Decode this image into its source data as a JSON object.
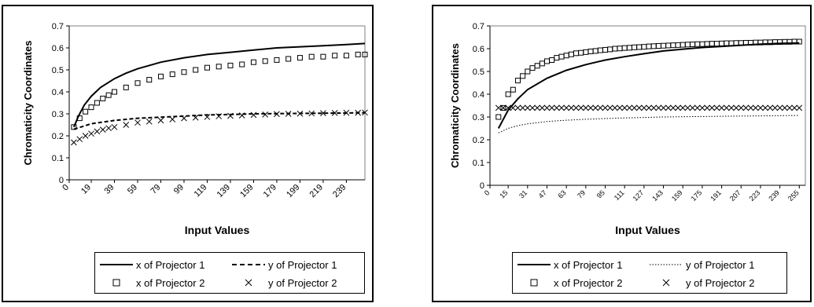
{
  "chart_data": [
    {
      "type": "line",
      "ylabel": "Chromaticity  Coordinates",
      "xlabel": "Input Values",
      "ylim": [
        0,
        0.7
      ],
      "yticks": [
        "0",
        "0.1",
        "0.2",
        "0.3",
        "0.4",
        "0.5",
        "0.6",
        "0.7"
      ],
      "xlim": [
        0,
        255
      ],
      "xtick_values": [
        0,
        19,
        39,
        59,
        79,
        99,
        119,
        139,
        159,
        179,
        199,
        219,
        239
      ],
      "xtick_labels": [
        "0",
        "19",
        "39",
        "59",
        "79",
        "99",
        "119",
        "139",
        "159",
        "179",
        "199",
        "219",
        "239"
      ],
      "grid": false,
      "legend": "bottom",
      "series": [
        {
          "name": "x of Projector 1",
          "style": "solid",
          "color": "#000000",
          "x": [
            4,
            8,
            13,
            19,
            27,
            39,
            49,
            59,
            69,
            79,
            99,
            119,
            139,
            159,
            179,
            199,
            219,
            239,
            255
          ],
          "y": [
            0.24,
            0.29,
            0.34,
            0.38,
            0.42,
            0.46,
            0.485,
            0.505,
            0.52,
            0.535,
            0.555,
            0.57,
            0.58,
            0.59,
            0.6,
            0.605,
            0.61,
            0.615,
            0.62
          ]
        },
        {
          "name": "y of Projector 1",
          "style": "dashed",
          "color": "#000000",
          "x": [
            4,
            19,
            39,
            59,
            79,
            99,
            119,
            139,
            159,
            179,
            199,
            219,
            239,
            255
          ],
          "y": [
            0.23,
            0.255,
            0.27,
            0.28,
            0.285,
            0.29,
            0.295,
            0.297,
            0.3,
            0.301,
            0.302,
            0.303,
            0.304,
            0.305
          ]
        },
        {
          "name": "x of Projector 2",
          "style": "square-marker",
          "color": "#000000",
          "x": [
            4,
            9,
            14,
            19,
            24,
            29,
            34,
            39,
            49,
            59,
            69,
            79,
            89,
            99,
            109,
            119,
            129,
            139,
            149,
            159,
            169,
            179,
            189,
            199,
            209,
            219,
            229,
            239,
            249,
            255
          ],
          "y": [
            0.24,
            0.28,
            0.31,
            0.33,
            0.35,
            0.37,
            0.385,
            0.4,
            0.42,
            0.44,
            0.455,
            0.47,
            0.48,
            0.49,
            0.5,
            0.51,
            0.515,
            0.52,
            0.525,
            0.535,
            0.54,
            0.545,
            0.55,
            0.555,
            0.56,
            0.56,
            0.565,
            0.565,
            0.57,
            0.57
          ]
        },
        {
          "name": "y of Projector 2",
          "style": "x-marker",
          "color": "#000000",
          "x": [
            4,
            9,
            14,
            19,
            24,
            29,
            34,
            39,
            49,
            59,
            69,
            79,
            89,
            99,
            109,
            119,
            129,
            139,
            149,
            159,
            169,
            179,
            189,
            199,
            209,
            219,
            229,
            239,
            249,
            255
          ],
          "y": [
            0.17,
            0.185,
            0.2,
            0.21,
            0.22,
            0.228,
            0.235,
            0.24,
            0.25,
            0.26,
            0.265,
            0.27,
            0.275,
            0.28,
            0.283,
            0.286,
            0.289,
            0.291,
            0.293,
            0.295,
            0.297,
            0.299,
            0.3,
            0.301,
            0.302,
            0.303,
            0.304,
            0.305,
            0.305,
            0.306
          ]
        }
      ]
    },
    {
      "type": "line",
      "ylabel": "Chromaticity  Coordinates",
      "xlabel": "Input Values",
      "ylim": [
        0,
        0.7
      ],
      "yticks": [
        "0",
        "0.1",
        "0.2",
        "0.3",
        "0.4",
        "0.5",
        "0.6",
        "0.7"
      ],
      "xlim": [
        0,
        260
      ],
      "xtick_values": [
        0,
        15,
        31,
        47,
        63,
        79,
        95,
        111,
        127,
        143,
        159,
        175,
        191,
        207,
        223,
        239,
        255
      ],
      "xtick_labels": [
        "0",
        "15",
        "31",
        "47",
        "63",
        "79",
        "95",
        "111",
        "127",
        "143",
        "159",
        "175",
        "191",
        "207",
        "223",
        "239",
        "255"
      ],
      "grid": false,
      "legend": "bottom",
      "series": [
        {
          "name": "x of Projector 1",
          "style": "solid",
          "color": "#000000",
          "x": [
            7,
            15,
            23,
            31,
            47,
            63,
            79,
            95,
            111,
            127,
            143,
            159,
            175,
            191,
            207,
            223,
            239,
            255
          ],
          "y": [
            0.25,
            0.33,
            0.38,
            0.42,
            0.47,
            0.505,
            0.53,
            0.55,
            0.565,
            0.578,
            0.59,
            0.598,
            0.605,
            0.61,
            0.615,
            0.62,
            0.623,
            0.625
          ]
        },
        {
          "name": "y of Projector 1",
          "style": "dotted",
          "color": "#000000",
          "x": [
            7,
            15,
            23,
            31,
            47,
            63,
            79,
            95,
            111,
            127,
            143,
            159,
            175,
            191,
            207,
            223,
            239,
            255
          ],
          "y": [
            0.23,
            0.25,
            0.262,
            0.27,
            0.28,
            0.286,
            0.29,
            0.293,
            0.296,
            0.298,
            0.3,
            0.301,
            0.302,
            0.303,
            0.304,
            0.305,
            0.306,
            0.307
          ]
        },
        {
          "name": "x of Projector 2",
          "style": "square-marker",
          "color": "#000000",
          "x": [
            7,
            11,
            15,
            19,
            23,
            27,
            31,
            35,
            39,
            43,
            47,
            51,
            55,
            59,
            63,
            67,
            71,
            75,
            79,
            83,
            87,
            91,
            95,
            99,
            103,
            107,
            111,
            115,
            119,
            123,
            127,
            131,
            135,
            139,
            143,
            147,
            151,
            155,
            159,
            163,
            167,
            171,
            175,
            179,
            183,
            187,
            191,
            195,
            199,
            203,
            207,
            211,
            215,
            219,
            223,
            227,
            231,
            235,
            239,
            243,
            247,
            251,
            255
          ],
          "y": [
            0.3,
            0.34,
            0.4,
            0.42,
            0.46,
            0.48,
            0.5,
            0.515,
            0.525,
            0.535,
            0.545,
            0.55,
            0.56,
            0.565,
            0.57,
            0.575,
            0.58,
            0.582,
            0.585,
            0.588,
            0.59,
            0.593,
            0.595,
            0.597,
            0.6,
            0.601,
            0.603,
            0.604,
            0.606,
            0.607,
            0.608,
            0.61,
            0.611,
            0.612,
            0.613,
            0.614,
            0.615,
            0.616,
            0.617,
            0.618,
            0.619,
            0.62,
            0.62,
            0.621,
            0.622,
            0.622,
            0.623,
            0.624,
            0.624,
            0.625,
            0.625,
            0.626,
            0.626,
            0.627,
            0.627,
            0.628,
            0.628,
            0.629,
            0.629,
            0.63,
            0.63,
            0.631,
            0.631
          ]
        },
        {
          "name": "y of Projector 2",
          "style": "x-marker",
          "color": "#000000",
          "x": [
            7,
            11,
            15,
            19,
            23,
            27,
            31,
            35,
            39,
            43,
            47,
            51,
            55,
            59,
            63,
            67,
            71,
            75,
            79,
            83,
            87,
            91,
            95,
            99,
            103,
            107,
            111,
            115,
            119,
            123,
            127,
            131,
            135,
            139,
            143,
            147,
            151,
            155,
            159,
            163,
            167,
            171,
            175,
            179,
            183,
            187,
            191,
            195,
            199,
            203,
            207,
            211,
            215,
            219,
            223,
            227,
            231,
            235,
            239,
            243,
            247,
            251,
            255
          ],
          "y": [
            0.34,
            0.34,
            0.34,
            0.34,
            0.34,
            0.34,
            0.34,
            0.34,
            0.34,
            0.34,
            0.34,
            0.34,
            0.34,
            0.34,
            0.34,
            0.34,
            0.34,
            0.34,
            0.34,
            0.34,
            0.34,
            0.34,
            0.34,
            0.34,
            0.34,
            0.34,
            0.34,
            0.34,
            0.34,
            0.34,
            0.34,
            0.34,
            0.34,
            0.34,
            0.34,
            0.34,
            0.34,
            0.34,
            0.34,
            0.34,
            0.34,
            0.34,
            0.34,
            0.34,
            0.34,
            0.34,
            0.34,
            0.34,
            0.34,
            0.34,
            0.34,
            0.34,
            0.34,
            0.34,
            0.34,
            0.34,
            0.34,
            0.34,
            0.34,
            0.34,
            0.34,
            0.34,
            0.34
          ]
        }
      ]
    }
  ]
}
